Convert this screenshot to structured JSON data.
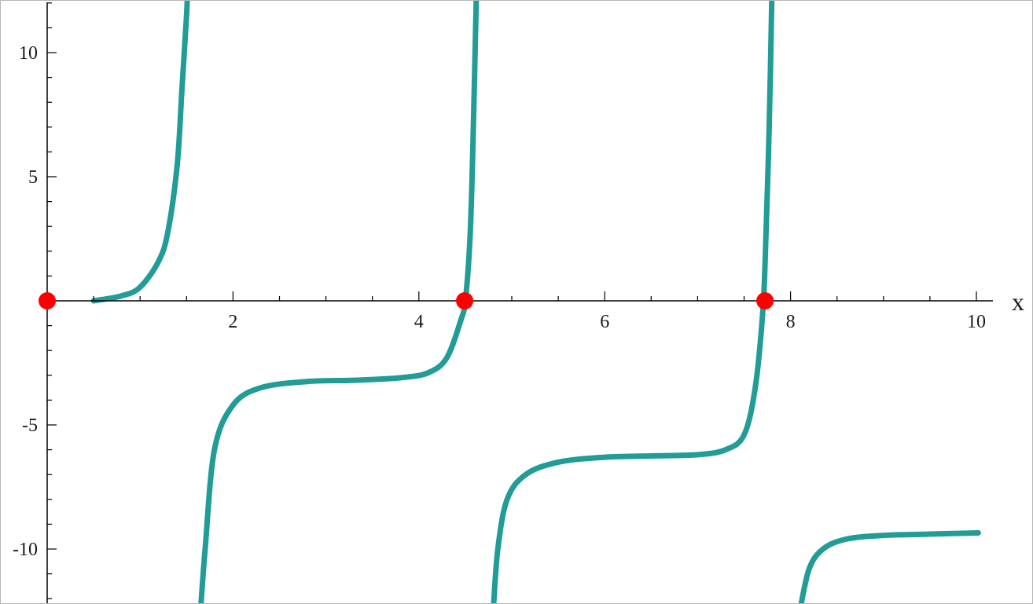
{
  "chart_data": {
    "type": "line",
    "title": "",
    "xlabel": "x",
    "ylabel": "",
    "xlim": [
      0,
      10.2
    ],
    "ylim": [
      -12,
      12
    ],
    "x_ticks": [
      2,
      4,
      6,
      8,
      10
    ],
    "x_tick_labels": [
      "2",
      "4",
      "6",
      "8",
      "10"
    ],
    "x_minor_step": 0.5,
    "y_ticks": [
      -10,
      -5,
      5,
      10
    ],
    "y_tick_labels": [
      "-10",
      "-5",
      "5",
      "10"
    ],
    "y_minor_step": 1,
    "grid": false,
    "colors": {
      "curve": "#219c96",
      "points": "#ff0000",
      "axes": "#000000"
    },
    "series": [
      {
        "values_note": "",
        "segments": [
          {
            "x": [
              0.5,
              0.8,
              1.0,
              1.2,
              1.3,
              1.4,
              1.45,
              1.5,
              1.51
            ],
            "y": [
              0.0,
              0.2,
              0.55,
              1.6,
              2.8,
              5.5,
              8.5,
              11.5,
              12.5
            ]
          },
          {
            "x": [
              1.65,
              1.7,
              1.8,
              2.0,
              2.3,
              2.8,
              3.3,
              3.8,
              4.1,
              4.3,
              4.45,
              4.5,
              4.55,
              4.58,
              4.62
            ],
            "y": [
              -12.5,
              -10.0,
              -6.0,
              -4.2,
              -3.5,
              -3.25,
              -3.2,
              -3.1,
              -2.9,
              -2.3,
              -0.8,
              0.0,
              2.5,
              6.0,
              12.5
            ]
          },
          {
            "x": [
              4.8,
              4.85,
              4.95,
              5.15,
              5.5,
              6.0,
              6.5,
              7.0,
              7.3,
              7.5,
              7.62,
              7.7,
              7.73,
              7.77,
              7.8
            ],
            "y": [
              -12.5,
              -10.0,
              -8.0,
              -7.0,
              -6.5,
              -6.3,
              -6.25,
              -6.2,
              -6.0,
              -5.4,
              -3.5,
              -0.5,
              2.0,
              7.0,
              12.5
            ]
          },
          {
            "x": [
              8.1,
              8.2,
              8.35,
              8.6,
              9.0,
              9.5,
              10.02
            ],
            "y": [
              -12.5,
              -10.8,
              -10.0,
              -9.6,
              -9.45,
              -9.4,
              -9.35
            ]
          }
        ]
      }
    ],
    "points": [
      {
        "x": 0.0,
        "y": 0.0
      },
      {
        "x": 4.493,
        "y": 0.0
      },
      {
        "x": 7.725,
        "y": 0.0
      }
    ]
  }
}
